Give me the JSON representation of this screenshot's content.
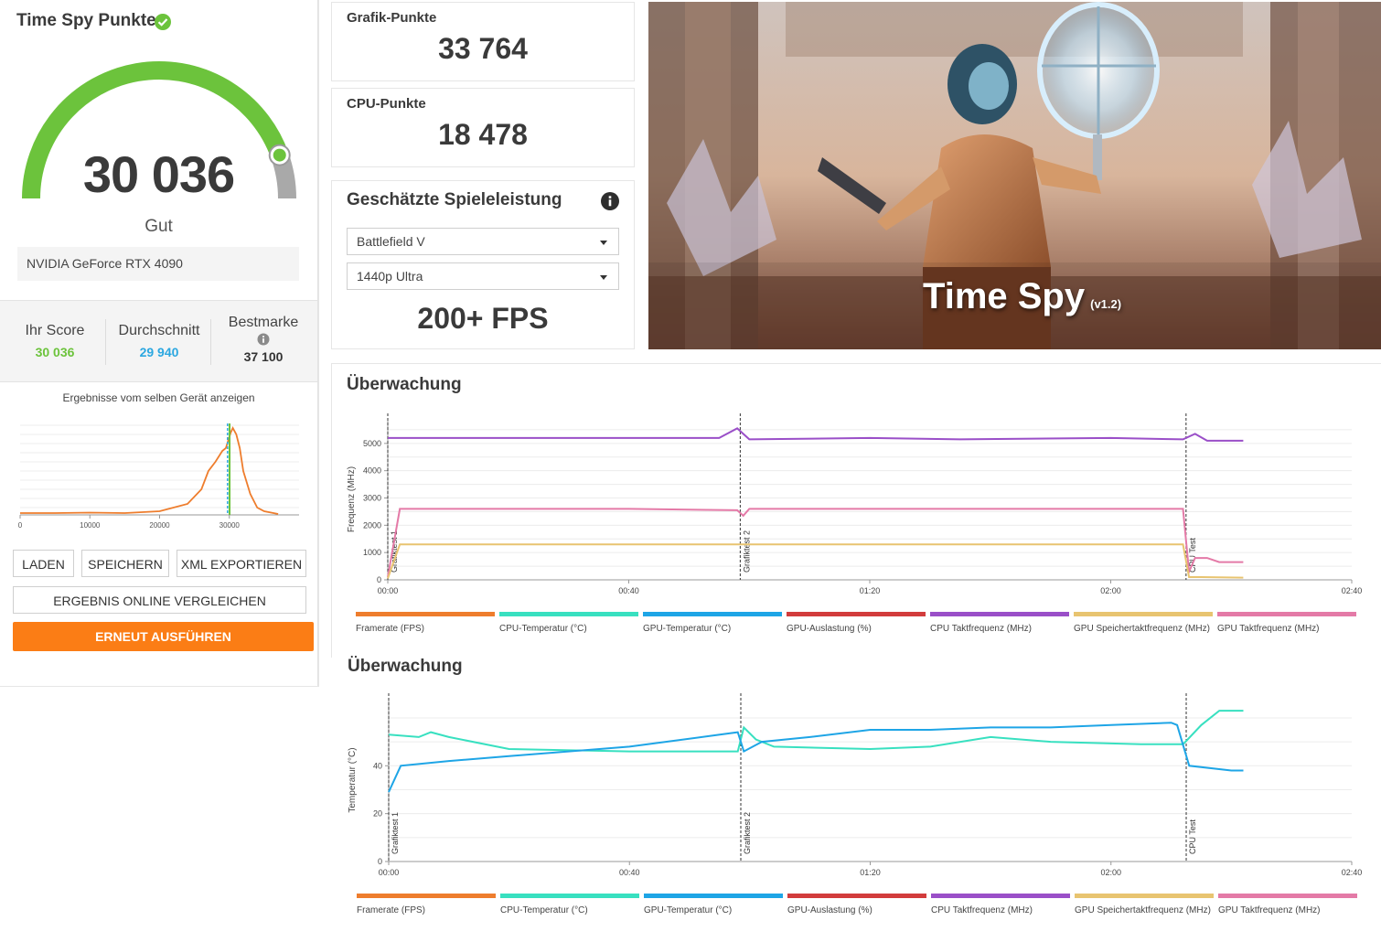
{
  "score_panel": {
    "title": "Time Spy Punkte",
    "score": "30 036",
    "rating": "Gut",
    "gpu": "NVIDIA GeForce RTX 4090",
    "gauge_fraction": 0.89,
    "stats": {
      "your_label": "Ihr Score",
      "your_value": "30 036",
      "avg_label": "Durchschnitt",
      "avg_value": "29 940",
      "best_label": "Bestmarke",
      "best_value": "37 100"
    },
    "same_device": "Ergebnisse vom selben Gerät anzeigen",
    "distribution": {
      "x_ticks": [
        "0",
        "10000",
        "20000",
        "30000"
      ]
    },
    "buttons": {
      "load": "LADEN",
      "save": "SPEICHERN",
      "export": "XML EXPORTIEREN",
      "compare": "ERGEBNIS ONLINE VERGLEICHEN",
      "run": "ERNEUT AUSFÜHREN"
    }
  },
  "sub_scores": {
    "graphics_label": "Grafik-Punkte",
    "graphics_value": "33 764",
    "cpu_label": "CPU-Punkte",
    "cpu_value": "18 478"
  },
  "game_perf": {
    "title": "Geschätzte Spieleleistung",
    "game": "Battlefield V",
    "preset": "1440p Ultra",
    "fps": "200+ FPS"
  },
  "hero": {
    "title": "Time Spy",
    "version": "(v1.2)"
  },
  "colors": {
    "accent": "#fb7d15",
    "gauge": "#6cc33c",
    "avg": "#2ba7e0",
    "framerate": "#ee7d2d",
    "cpu_temp": "#38e0c0",
    "gpu_temp": "#1ea5e6",
    "gpu_load": "#d23c3c",
    "cpu_clock": "#9a4fc8",
    "gpu_mem_clock": "#e8c470",
    "gpu_clock": "#e47aa7"
  },
  "monitoring": [
    {
      "title": "Überwachung",
      "chart_data": {
        "type": "line",
        "ylabel": "Frequenz (MHz)",
        "yticks": [
          "0",
          "1000",
          "2000",
          "3000",
          "4000",
          "5000"
        ],
        "xticks": [
          "00:00",
          "00:40",
          "01:20",
          "02:00",
          "02:40"
        ],
        "markers": [
          "Grafiktest 1",
          "Grafiktest 2",
          "CPU Test"
        ],
        "series": [
          {
            "name": "CPU Taktfrequenz (MHz)",
            "points": [
              [
                0,
                5200
              ],
              [
                20,
                5200
              ],
              [
                40,
                5200
              ],
              [
                55,
                5200
              ],
              [
                58,
                5550
              ],
              [
                60,
                5150
              ],
              [
                80,
                5200
              ],
              [
                95,
                5150
              ],
              [
                120,
                5200
              ],
              [
                132,
                5150
              ],
              [
                134,
                5350
              ],
              [
                136,
                5100
              ],
              [
                142,
                5100
              ]
            ]
          },
          {
            "name": "GPU Taktfrequenz (MHz)",
            "points": [
              [
                0,
                100
              ],
              [
                2,
                2600
              ],
              [
                40,
                2600
              ],
              [
                58,
                2550
              ],
              [
                59,
                2350
              ],
              [
                60,
                2600
              ],
              [
                132,
                2600
              ],
              [
                133,
                300
              ],
              [
                134,
                800
              ],
              [
                136,
                800
              ],
              [
                138,
                650
              ],
              [
                142,
                650
              ]
            ]
          },
          {
            "name": "GPU Speichertaktfrequenz (MHz)",
            "points": [
              [
                0,
                50
              ],
              [
                2,
                1300
              ],
              [
                132,
                1300
              ],
              [
                133,
                100
              ],
              [
                135,
                100
              ],
              [
                142,
                80
              ]
            ]
          }
        ]
      },
      "legend": [
        "Framerate (FPS)",
        "CPU-Temperatur (°C)",
        "GPU-Temperatur (°C)",
        "GPU-Auslastung (%)",
        "CPU Taktfrequenz (MHz)",
        "GPU Speichertaktfrequenz (MHz)",
        "GPU Taktfrequenz (MHz)"
      ]
    },
    {
      "title": "Überwachung",
      "chart_data": {
        "type": "line",
        "ylabel": "Temperatur (°C)",
        "yticks": [
          "0",
          "20",
          "40"
        ],
        "xticks": [
          "00:00",
          "00:40",
          "01:20",
          "02:00",
          "02:40"
        ],
        "markers": [
          "Grafiktest 1",
          "Grafiktest 2",
          "CPU Test"
        ],
        "series": [
          {
            "name": "CPU-Temperatur (°C)",
            "points": [
              [
                0,
                53
              ],
              [
                5,
                52
              ],
              [
                7,
                54
              ],
              [
                10,
                52
              ],
              [
                20,
                47
              ],
              [
                40,
                46
              ],
              [
                55,
                46
              ],
              [
                58,
                46
              ],
              [
                59,
                56
              ],
              [
                61,
                51
              ],
              [
                64,
                48
              ],
              [
                80,
                47
              ],
              [
                90,
                48
              ],
              [
                100,
                52
              ],
              [
                110,
                50
              ],
              [
                125,
                49
              ],
              [
                130,
                49
              ],
              [
                132,
                49
              ],
              [
                135,
                57
              ],
              [
                138,
                63
              ],
              [
                142,
                63
              ]
            ]
          },
          {
            "name": "GPU-Temperatur (°C)",
            "points": [
              [
                0,
                29
              ],
              [
                2,
                40
              ],
              [
                10,
                42
              ],
              [
                20,
                44
              ],
              [
                40,
                48
              ],
              [
                55,
                53
              ],
              [
                58,
                54
              ],
              [
                59,
                46
              ],
              [
                62,
                50
              ],
              [
                70,
                52
              ],
              [
                80,
                55
              ],
              [
                90,
                55
              ],
              [
                100,
                56
              ],
              [
                110,
                56
              ],
              [
                120,
                57
              ],
              [
                130,
                58
              ],
              [
                131,
                57
              ],
              [
                133,
                40
              ],
              [
                140,
                38
              ],
              [
                142,
                38
              ]
            ]
          }
        ]
      },
      "legend": [
        "Framerate (FPS)",
        "CPU-Temperatur (°C)",
        "GPU-Temperatur (°C)",
        "GPU-Auslastung (%)",
        "CPU Taktfrequenz (MHz)",
        "GPU Speichertaktfrequenz (MHz)",
        "GPU Taktfrequenz (MHz)"
      ]
    }
  ]
}
